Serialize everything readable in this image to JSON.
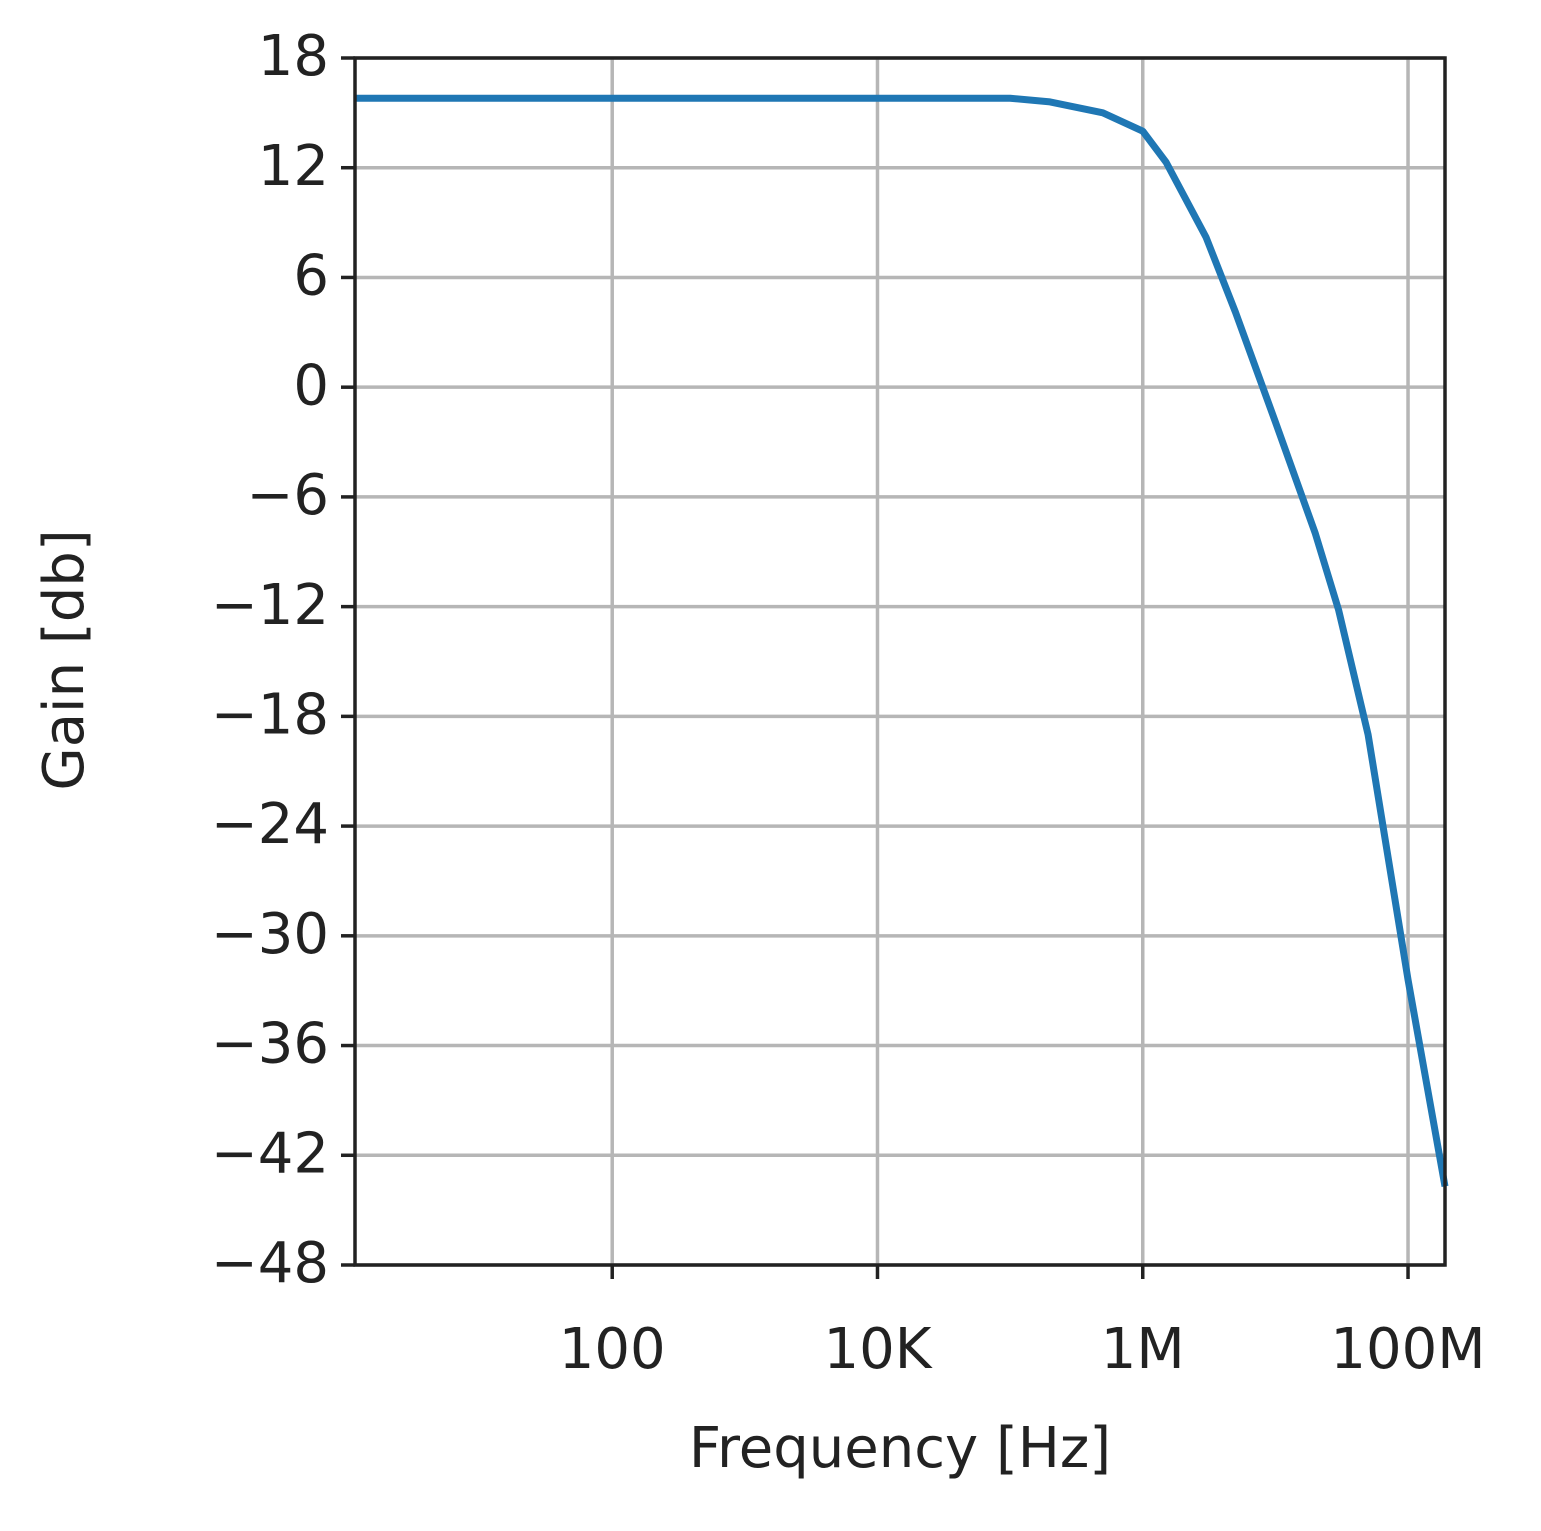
{
  "chart_data": {
    "type": "line",
    "x_label": "Frequency [Hz]",
    "y_label": "Gain [db]",
    "x": [
      1.15,
      1000,
      10000,
      100000,
      200000,
      500000,
      1000000,
      1500000,
      3000000,
      5000000,
      10000000,
      20000000,
      30000000,
      50000000,
      100000000,
      190000000
    ],
    "values": [
      15.8,
      15.8,
      15.8,
      15.8,
      15.6,
      15.0,
      14.0,
      12.3,
      8.2,
      4.1,
      -1.9,
      -8.0,
      -12.2,
      -19.0,
      -32.4,
      -43.7
    ],
    "color": "#1f77b4",
    "xlog": true,
    "xlim": [
      1.15,
      190000000
    ],
    "xticks": [
      100,
      {
        "value": 10000,
        "label": "10K"
      },
      {
        "value": 1000000,
        "label": "1M"
      },
      {
        "value": 100000000,
        "label": "100M"
      }
    ],
    "ylim": [
      -48,
      18
    ],
    "yticks": [
      {
        "value": -48,
        "label": "−48"
      },
      {
        "value": -42,
        "label": "−42"
      },
      {
        "value": -36,
        "label": "−36"
      },
      {
        "value": -30,
        "label": "−30"
      },
      {
        "value": -24,
        "label": "−24"
      },
      {
        "value": -18,
        "label": "−18"
      },
      {
        "value": -12,
        "label": "−12"
      },
      {
        "value": -6,
        "label": "−6"
      },
      0,
      6,
      12,
      18
    ],
    "grid": true
  }
}
